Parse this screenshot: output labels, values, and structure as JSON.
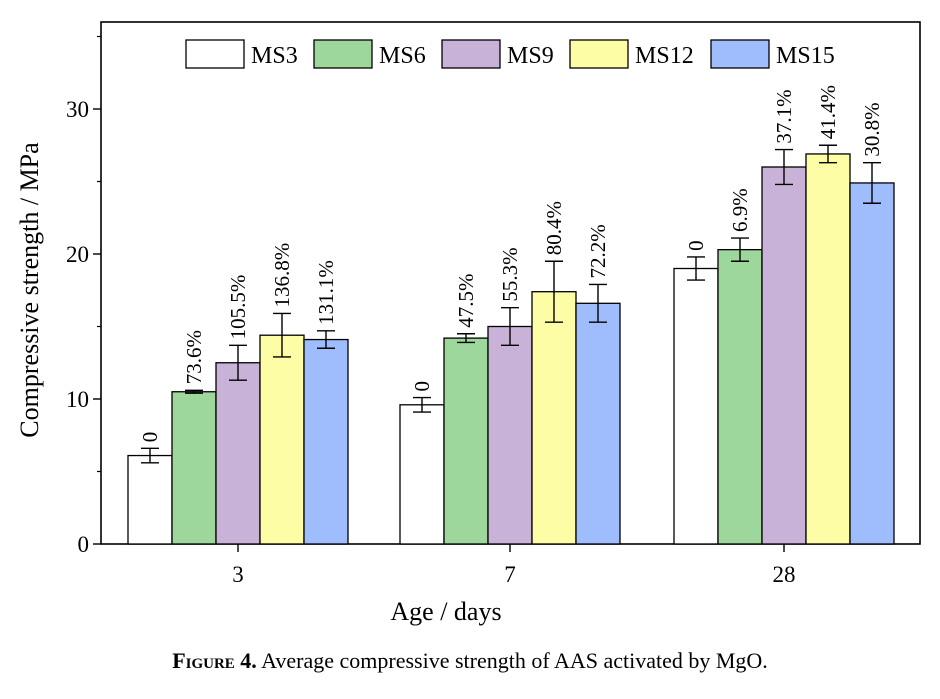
{
  "caption": {
    "label": "Figure 4.",
    "text": "Average compressive strength of AAS activated by MgO."
  },
  "chart_data": {
    "type": "bar",
    "xlabel": "Age / days",
    "ylabel": "Compressive strength / MPa",
    "ylim": [
      0,
      36
    ],
    "yticks": [
      0,
      10,
      20,
      30
    ],
    "categories": [
      "3",
      "7",
      "28"
    ],
    "legend_position": "top",
    "grid": false,
    "series": [
      {
        "name": "MS3",
        "color": "#ffffff",
        "values": [
          6.1,
          9.6,
          19.0
        ],
        "errors": [
          0.5,
          0.5,
          0.8
        ],
        "labels": [
          "0",
          "0",
          "0"
        ]
      },
      {
        "name": "MS6",
        "color": "#9ed79b",
        "values": [
          10.5,
          14.2,
          20.3
        ],
        "errors": [
          0.1,
          0.3,
          0.8
        ],
        "labels": [
          "73.6%",
          "47.5%",
          "6.9%"
        ]
      },
      {
        "name": "MS9",
        "color": "#c8b2d7",
        "values": [
          12.5,
          15.0,
          26.0
        ],
        "errors": [
          1.2,
          1.3,
          1.2
        ],
        "labels": [
          "105.5%",
          "55.3%",
          "37.1%"
        ]
      },
      {
        "name": "MS12",
        "color": "#fdfda6",
        "values": [
          14.4,
          17.4,
          26.9
        ],
        "errors": [
          1.5,
          2.1,
          0.6
        ],
        "labels": [
          "136.8%",
          "80.4%",
          "41.4%"
        ]
      },
      {
        "name": "MS15",
        "color": "#9fbdfd",
        "values": [
          14.1,
          16.6,
          24.9
        ],
        "errors": [
          0.6,
          1.3,
          1.4
        ],
        "labels": [
          "131.1%",
          "72.2%",
          "30.8%"
        ]
      }
    ]
  }
}
